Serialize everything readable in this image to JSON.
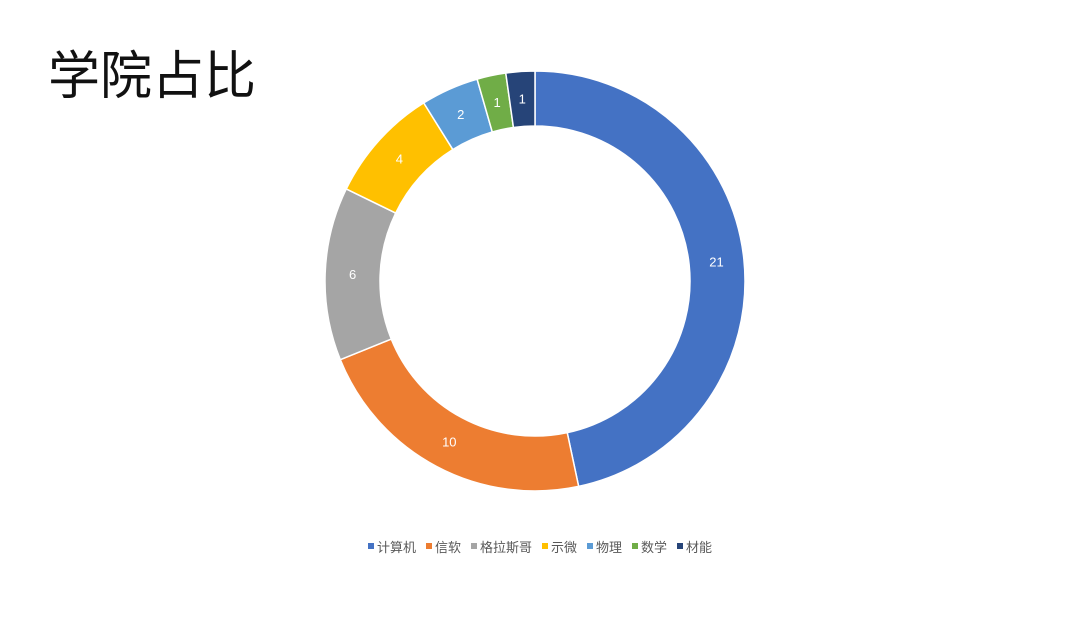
{
  "title": "学院占比",
  "chart_data": {
    "type": "pie",
    "variant": "donut",
    "title": "学院占比",
    "legend_position": "bottom",
    "categories": [
      "计算机",
      "信软",
      "格拉斯哥",
      "示微",
      "物理",
      "数学",
      "材能"
    ],
    "values": [
      21,
      10,
      6,
      4,
      2,
      1,
      1
    ],
    "data_labels": [
      "21",
      "10",
      "6",
      "4",
      "2",
      "1",
      "1"
    ],
    "colors": [
      "#4472C4",
      "#ED7D31",
      "#A5A5A5",
      "#FFC000",
      "#5B9BD5",
      "#70AD47",
      "#264478"
    ]
  }
}
